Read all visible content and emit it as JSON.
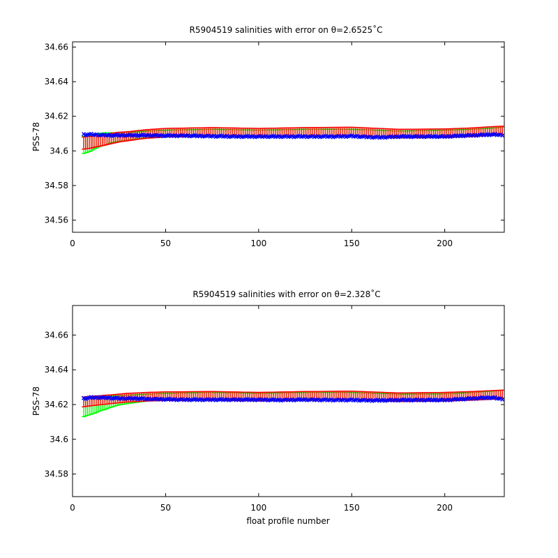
{
  "chart_data": [
    {
      "type": "line",
      "title": "R5904519 salinities with error on θ=2.6525˚C",
      "xlabel": "",
      "ylabel": "PSS-78",
      "xlim": [
        0,
        232
      ],
      "ylim": [
        34.553,
        34.663
      ],
      "xticks": [
        0,
        50,
        100,
        150,
        200
      ],
      "yticks": [
        34.56,
        34.58,
        34.6,
        34.62,
        34.64,
        34.66
      ],
      "ytick_labels": [
        "34.56",
        "34.58",
        "34.6",
        "34.62",
        "34.64",
        "34.66"
      ],
      "grid": false,
      "legend": "none",
      "series": [
        {
          "color": "#00ff00",
          "x": [
            6,
            8,
            10,
            12,
            15,
            18,
            20,
            25,
            30,
            35,
            40,
            50,
            75,
            100,
            125,
            150,
            175,
            200,
            215,
            225,
            231
          ],
          "center": [
            34.6035,
            34.604,
            34.6045,
            34.6055,
            34.6065,
            34.607,
            34.6075,
            34.608,
            34.6085,
            34.609,
            34.6095,
            34.61,
            34.6105,
            34.61,
            34.6105,
            34.6105,
            34.6095,
            34.61,
            34.6105,
            34.611,
            34.6115
          ],
          "err": [
            0.005,
            0.0048,
            0.0045,
            0.0042,
            0.0038,
            0.0035,
            0.003,
            0.0025,
            0.0022,
            0.002,
            0.002,
            0.002,
            0.002,
            0.002,
            0.002,
            0.002,
            0.002,
            0.002,
            0.002,
            0.0022,
            0.0022
          ]
        },
        {
          "color": "#ff0000",
          "x": [
            6,
            8,
            10,
            12,
            15,
            18,
            20,
            25,
            30,
            35,
            40,
            50,
            75,
            100,
            125,
            150,
            175,
            200,
            215,
            225,
            231
          ],
          "center": [
            34.6045,
            34.6048,
            34.605,
            34.6055,
            34.606,
            34.6065,
            34.607,
            34.608,
            34.6085,
            34.6092,
            34.6098,
            34.6105,
            34.611,
            34.6105,
            34.611,
            34.6112,
            34.61,
            34.6102,
            34.6108,
            34.6115,
            34.6118
          ],
          "err": [
            0.0035,
            0.0035,
            0.0034,
            0.0033,
            0.0032,
            0.003,
            0.003,
            0.0028,
            0.0026,
            0.0025,
            0.0025,
            0.0025,
            0.0025,
            0.0025,
            0.0025,
            0.0025,
            0.0025,
            0.0025,
            0.0025,
            0.0025,
            0.0025
          ]
        },
        {
          "color": "#0000ff",
          "marker": "x",
          "x": [
            6,
            10,
            15,
            20,
            25,
            30,
            35,
            40,
            50,
            60,
            75,
            90,
            100,
            110,
            125,
            140,
            150,
            160,
            165,
            175,
            185,
            200,
            210,
            220,
            225,
            231
          ],
          "y": [
            34.6095,
            34.6095,
            34.6092,
            34.609,
            34.609,
            34.609,
            34.609,
            34.609,
            34.6088,
            34.6088,
            34.6085,
            34.6083,
            34.6083,
            34.6083,
            34.6083,
            34.6083,
            34.6085,
            34.608,
            34.6078,
            34.6083,
            34.6083,
            34.6083,
            34.6088,
            34.6092,
            34.6095,
            34.6092
          ]
        }
      ]
    },
    {
      "type": "line",
      "title": "R5904519 salinities with error on θ=2.328˚C",
      "xlabel": "float profile number",
      "ylabel": "PSS-78",
      "xlim": [
        0,
        232
      ],
      "ylim": [
        34.567,
        34.677
      ],
      "xticks": [
        0,
        50,
        100,
        150,
        200
      ],
      "yticks": [
        34.58,
        34.6,
        34.62,
        34.64,
        34.66
      ],
      "ytick_labels": [
        "34.58",
        "34.6",
        "34.62",
        "34.64",
        "34.66"
      ],
      "grid": false,
      "legend": "none",
      "series": [
        {
          "color": "#00ff00",
          "x": [
            6,
            8,
            10,
            12,
            15,
            18,
            20,
            25,
            30,
            35,
            40,
            50,
            75,
            100,
            125,
            150,
            175,
            200,
            215,
            225,
            231
          ],
          "center": [
            34.618,
            34.6185,
            34.619,
            34.6195,
            34.6205,
            34.621,
            34.6215,
            34.6225,
            34.623,
            34.6235,
            34.624,
            34.6245,
            34.625,
            34.6245,
            34.625,
            34.625,
            34.624,
            34.6242,
            34.625,
            34.6255,
            34.626
          ],
          "err": [
            0.005,
            0.0048,
            0.0046,
            0.0044,
            0.004,
            0.0037,
            0.0033,
            0.0027,
            0.0024,
            0.0022,
            0.002,
            0.002,
            0.002,
            0.002,
            0.002,
            0.002,
            0.002,
            0.002,
            0.002,
            0.0022,
            0.0022
          ]
        },
        {
          "color": "#ff0000",
          "x": [
            6,
            8,
            10,
            12,
            15,
            18,
            20,
            25,
            30,
            35,
            40,
            50,
            75,
            100,
            125,
            150,
            175,
            200,
            215,
            225,
            231
          ],
          "center": [
            34.6215,
            34.6218,
            34.622,
            34.6222,
            34.6225,
            34.6228,
            34.623,
            34.6235,
            34.624,
            34.6242,
            34.6245,
            34.6248,
            34.625,
            34.6245,
            34.625,
            34.6252,
            34.6242,
            34.6245,
            34.625,
            34.6255,
            34.6258
          ],
          "err": [
            0.0028,
            0.0028,
            0.0027,
            0.0027,
            0.0026,
            0.0026,
            0.0025,
            0.0025,
            0.0025,
            0.0025,
            0.0025,
            0.0025,
            0.0025,
            0.0025,
            0.0025,
            0.0025,
            0.0025,
            0.0025,
            0.0025,
            0.0025,
            0.0025
          ]
        },
        {
          "color": "#0000ff",
          "marker": "x",
          "x": [
            6,
            10,
            15,
            20,
            25,
            30,
            35,
            40,
            50,
            60,
            75,
            90,
            100,
            110,
            125,
            140,
            150,
            160,
            165,
            175,
            185,
            200,
            210,
            220,
            225,
            231
          ],
          "y": [
            34.6235,
            34.624,
            34.624,
            34.6238,
            34.6235,
            34.6235,
            34.6235,
            34.6232,
            34.623,
            34.6228,
            34.6228,
            34.6228,
            34.6228,
            34.6226,
            34.6228,
            34.6226,
            34.6226,
            34.6224,
            34.6224,
            34.6226,
            34.6226,
            34.6226,
            34.6232,
            34.6238,
            34.624,
            34.6232
          ]
        }
      ]
    }
  ]
}
